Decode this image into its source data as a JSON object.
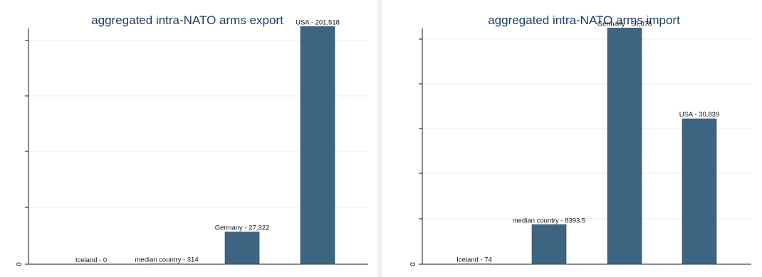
{
  "chart_data": [
    {
      "type": "bar",
      "title": "aggregated intra-NATO arms export",
      "categories": [
        "Iceland",
        "median country",
        "Germany",
        "USA"
      ],
      "values": [
        0,
        314,
        27322,
        201518
      ],
      "data_labels": [
        "Iceland - 0",
        "median country - 314",
        "Germany - 27,322",
        "USA - 201,518"
      ],
      "y_tick_labels": [
        "0"
      ],
      "ylim": [
        0,
        206000
      ],
      "grid": true,
      "bar_color": "#3d6480"
    },
    {
      "type": "bar",
      "title": "aggregated intra-NATO arms import",
      "categories": [
        "Iceland",
        "median country",
        "Germany",
        "USA"
      ],
      "values": [
        74,
        8393.5,
        50078,
        30839
      ],
      "data_labels": [
        "Iceland - 74",
        "median country - 8393.5",
        "Germany - 50,078",
        "USA - 30,839"
      ],
      "y_tick_labels": [
        "0"
      ],
      "ylim": [
        0,
        51500
      ],
      "grid": true,
      "bar_color": "#3d6480"
    }
  ]
}
